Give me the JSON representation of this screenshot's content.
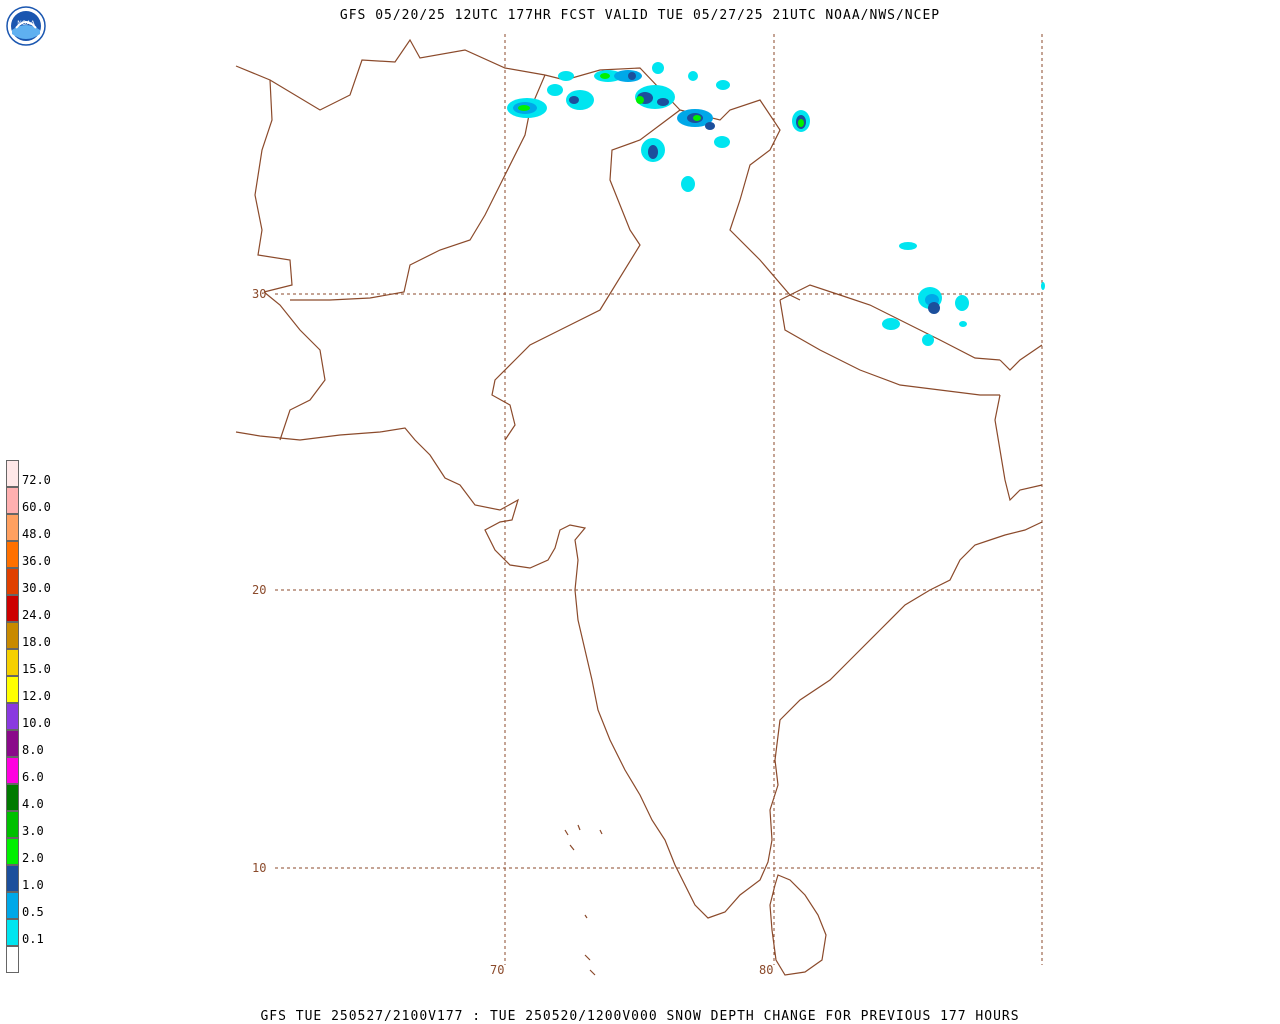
{
  "header": {
    "title": "GFS 05/20/25 12UTC 177HR FCST VALID TUE 05/27/25 21UTC NOAA/NWS/NCEP"
  },
  "footer": {
    "caption": "GFS TUE 250527/2100V177 : TUE 250520/1200V000 SNOW DEPTH CHANGE FOR PREVIOUS 177 HOURS"
  },
  "logo": {
    "icon": "noaa-logo-icon",
    "text": "NOAA"
  },
  "map": {
    "lat_labels": [
      "30",
      "20",
      "10"
    ],
    "lon_labels": [
      "70",
      "80"
    ],
    "coast_color": "#8b4a2b",
    "grid_color": "#8b4a2b"
  },
  "legend": {
    "items": [
      {
        "label": "",
        "color": "#ffffff"
      },
      {
        "label": "0.1",
        "color": "#00e5f0"
      },
      {
        "label": "0.5",
        "color": "#00a8e8"
      },
      {
        "label": "1.0",
        "color": "#1c4f9c"
      },
      {
        "label": "2.0",
        "color": "#00f000"
      },
      {
        "label": "3.0",
        "color": "#00c000"
      },
      {
        "label": "4.0",
        "color": "#007a00"
      },
      {
        "label": "6.0",
        "color": "#ff00e0"
      },
      {
        "label": "8.0",
        "color": "#8a0a8a"
      },
      {
        "label": "10.0",
        "color": "#8a3ae0"
      },
      {
        "label": "12.0",
        "color": "#ffff00"
      },
      {
        "label": "15.0",
        "color": "#f5d000"
      },
      {
        "label": "18.0",
        "color": "#c88a00"
      },
      {
        "label": "24.0",
        "color": "#cc0000"
      },
      {
        "label": "30.0",
        "color": "#e04000"
      },
      {
        "label": "36.0",
        "color": "#ff7000"
      },
      {
        "label": "48.0",
        "color": "#ffa060"
      },
      {
        "label": "60.0",
        "color": "#ffb0b0"
      },
      {
        "label": "72.0",
        "color": "#ffe8e8"
      }
    ]
  }
}
